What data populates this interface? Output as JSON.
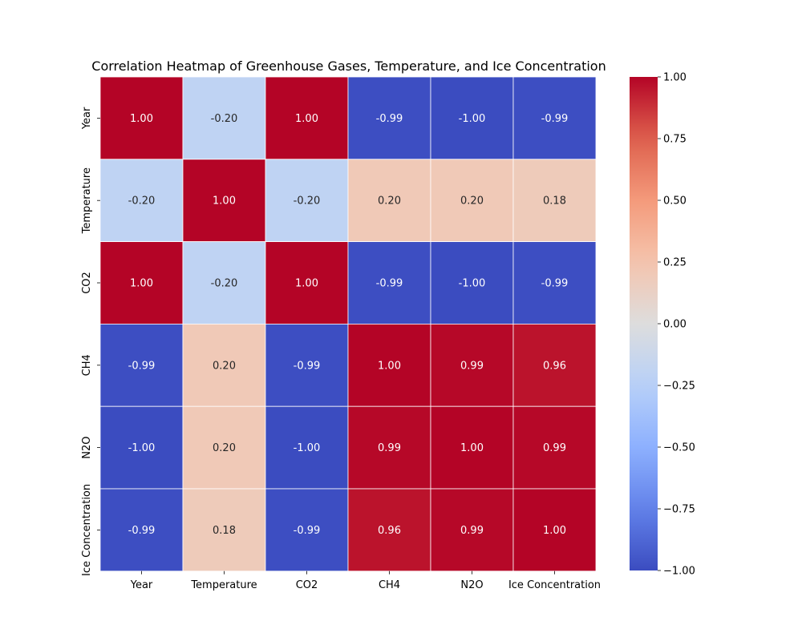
{
  "chart_data": {
    "type": "heatmap",
    "title": "Correlation Heatmap of Greenhouse Gases, Temperature, and Ice Concentration",
    "xlabel": "",
    "ylabel": "",
    "x_categories": [
      "Year",
      "Temperature",
      "CO2",
      "CH4",
      "N2O",
      "Ice Concentration"
    ],
    "y_categories": [
      "Year",
      "Temperature",
      "CO2",
      "CH4",
      "N2O",
      "Ice Concentration"
    ],
    "values": [
      [
        1.0,
        -0.2,
        1.0,
        -0.99,
        -1.0,
        -0.99
      ],
      [
        -0.2,
        1.0,
        -0.2,
        0.2,
        0.2,
        0.18
      ],
      [
        1.0,
        -0.2,
        1.0,
        -0.99,
        -1.0,
        -0.99
      ],
      [
        -0.99,
        0.2,
        -0.99,
        1.0,
        0.99,
        0.96
      ],
      [
        -1.0,
        0.2,
        -1.0,
        0.99,
        1.0,
        0.99
      ],
      [
        -0.99,
        0.18,
        -0.99,
        0.96,
        0.99,
        1.0
      ]
    ],
    "annotation_format": "0.00",
    "colormap": "coolwarm",
    "vmin": -1.0,
    "vmax": 1.0,
    "colorbar_ticks": [
      1.0,
      0.75,
      0.5,
      0.25,
      0.0,
      -0.25,
      -0.5,
      -0.75,
      -1.0
    ],
    "colorbar_tick_labels": [
      "1.00",
      "0.75",
      "0.50",
      "0.25",
      "0.00",
      "−0.25",
      "−0.50",
      "−0.75",
      "−1.00"
    ],
    "grid": false,
    "legend": "colorbar-right"
  }
}
